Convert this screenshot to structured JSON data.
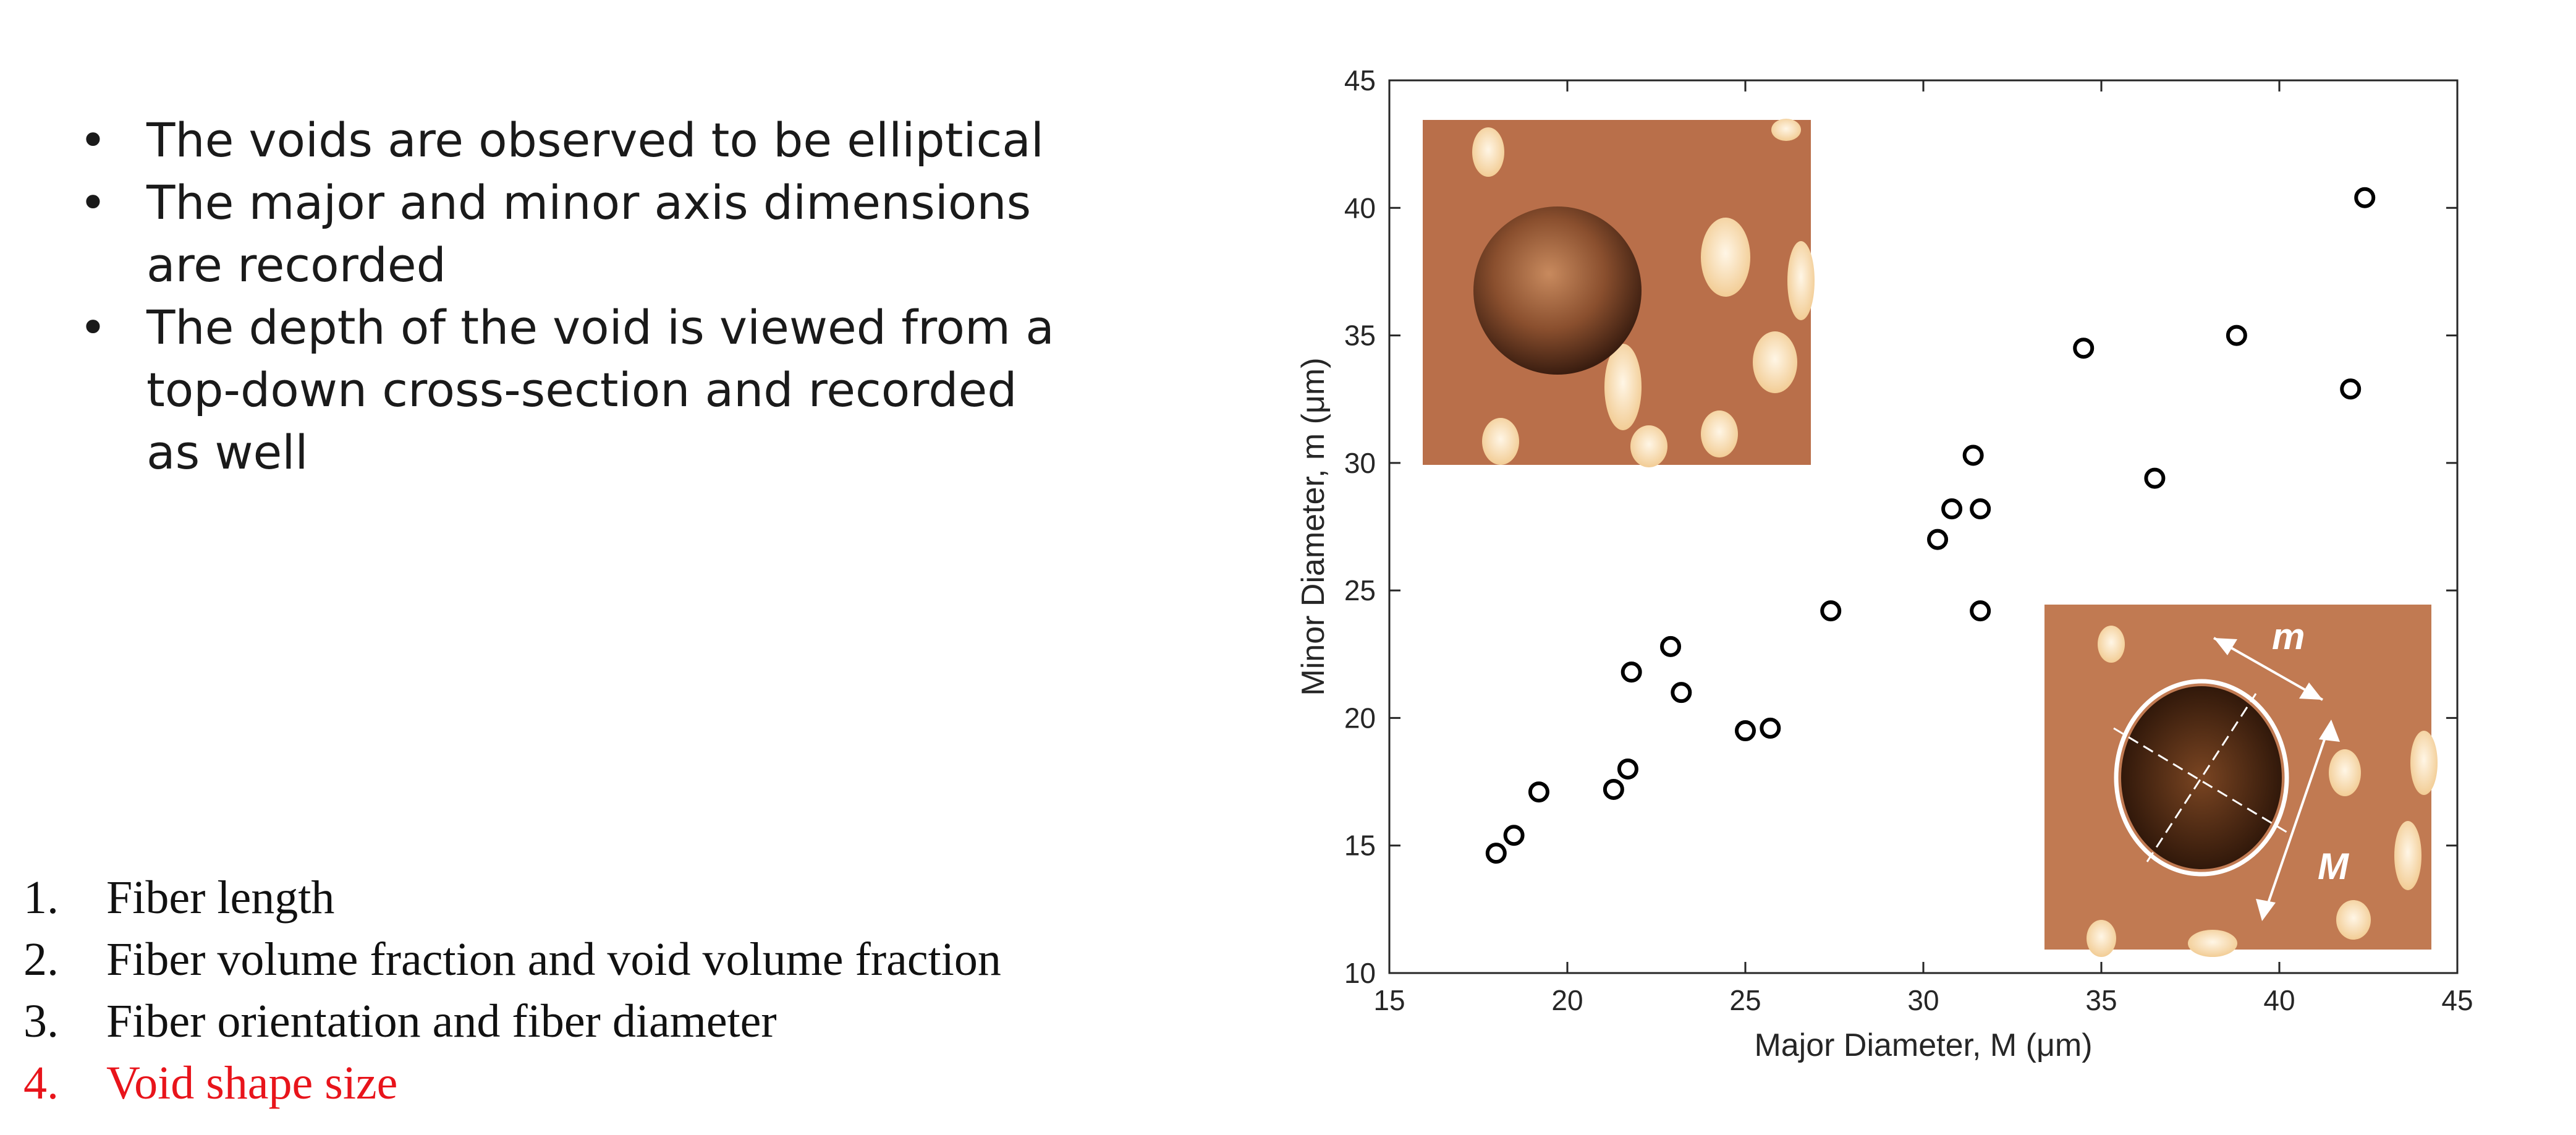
{
  "bullets": [
    "The voids are observed to be elliptical",
    "The major and minor axis dimensions are recorded",
    "The depth of the void is viewed from a top-down cross-section and recorded as well"
  ],
  "bullet_marker": "•",
  "numbered_list": [
    {
      "num": "1.",
      "text": "Fiber length"
    },
    {
      "num": "2.",
      "text": "Fiber volume fraction and void volume fraction"
    },
    {
      "num": "3.",
      "text": "Fiber orientation and fiber diameter"
    },
    {
      "num": "4.",
      "text": "Void shape size",
      "highlight": true
    }
  ],
  "colors": {
    "highlight": "#e8141b",
    "marker": "#000000",
    "inset_bg": "#b96f4a"
  },
  "inset_labels": {
    "minor": "m",
    "major": "M"
  },
  "chart_data": {
    "type": "scatter",
    "xlabel": "Major Diameter, M (μm)",
    "ylabel": "Minor Diameter, m (μm)",
    "xlim": [
      15,
      45
    ],
    "ylim": [
      10,
      45
    ],
    "xticks": [
      15,
      20,
      25,
      30,
      35,
      40,
      45
    ],
    "yticks": [
      10,
      15,
      20,
      25,
      30,
      35,
      40,
      45
    ],
    "grid": false,
    "marker": "open circle",
    "points": [
      [
        18.0,
        14.7
      ],
      [
        18.5,
        15.4
      ],
      [
        19.2,
        17.1
      ],
      [
        21.3,
        17.2
      ],
      [
        21.7,
        18.0
      ],
      [
        21.8,
        21.8
      ],
      [
        22.9,
        22.8
      ],
      [
        23.2,
        21.0
      ],
      [
        25.0,
        19.5
      ],
      [
        25.7,
        19.6
      ],
      [
        27.4,
        24.2
      ],
      [
        30.4,
        27.0
      ],
      [
        30.8,
        28.2
      ],
      [
        31.4,
        30.3
      ],
      [
        31.6,
        28.2
      ],
      [
        31.6,
        24.2
      ],
      [
        34.5,
        34.5
      ],
      [
        36.5,
        29.4
      ],
      [
        38.8,
        35.0
      ],
      [
        42.0,
        32.9
      ],
      [
        42.4,
        40.4
      ]
    ]
  }
}
